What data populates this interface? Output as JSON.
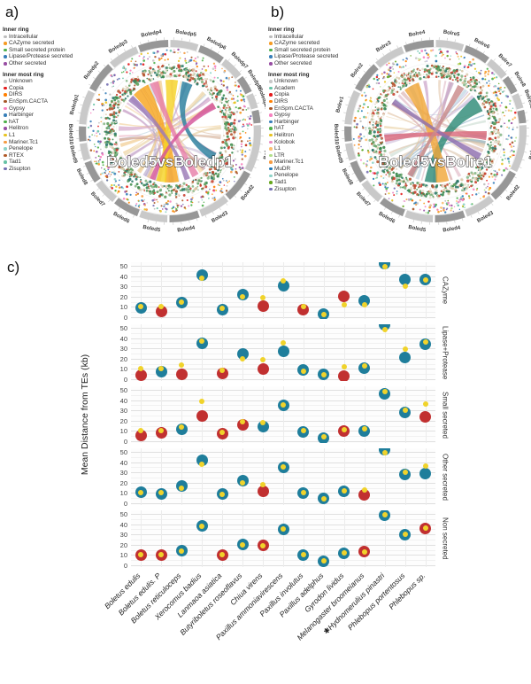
{
  "figure": {
    "panel_a": {
      "label": "a)",
      "legend": {
        "inner_ring_title": "Inner ring",
        "inner_ring": [
          {
            "label": "Intracellular",
            "color": "#bdbdbd"
          },
          {
            "label": "CAZyme secreted",
            "color": "#f59b23"
          },
          {
            "label": "Small secreted protein",
            "color": "#4daf4a"
          },
          {
            "label": "Lipase/Protease secreted",
            "color": "#377eb8"
          },
          {
            "label": "Other secreted",
            "color": "#984ea3"
          }
        ],
        "inner_most_ring_title": "Inner most ring",
        "inner_most_ring": [
          {
            "label": "Unknown",
            "color": "#c8c8c8"
          },
          {
            "label": "Copia",
            "color": "#e41a1c"
          },
          {
            "label": "DIRS",
            "color": "#ff7f00"
          },
          {
            "label": "EnSpm.CACTA",
            "color": "#a65628"
          },
          {
            "label": "Gypsy",
            "color": "#f781bf"
          },
          {
            "label": "Harbinger",
            "color": "#377eb8"
          },
          {
            "label": "hAT",
            "color": "#4daf4a"
          },
          {
            "label": "Helitron",
            "color": "#984ea3"
          },
          {
            "label": "L1",
            "color": "#e8c320"
          },
          {
            "label": "Mariner.Tc1",
            "color": "#f59b42"
          },
          {
            "label": "Penelope",
            "color": "#8dd3c7"
          },
          {
            "label": "RTEX",
            "color": "#b15928"
          },
          {
            "label": "Tad1",
            "color": "#66c2a5"
          },
          {
            "label": "Zisupton",
            "color": "#7570b3"
          }
        ]
      }
    },
    "panel_b": {
      "label": "b)",
      "legend": {
        "inner_ring_title": "Inner ring",
        "inner_ring": [
          {
            "label": "Intracellular",
            "color": "#bdbdbd"
          },
          {
            "label": "CAZyme secreted",
            "color": "#f59b23"
          },
          {
            "label": "Small secreted protein",
            "color": "#4daf4a"
          },
          {
            "label": "Lipase/Protease secreted",
            "color": "#377eb8"
          },
          {
            "label": "Other secreted",
            "color": "#984ea3"
          }
        ],
        "inner_most_ring_title": "Inner most ring",
        "inner_most_ring": [
          {
            "label": "Unknown",
            "color": "#c8c8c8"
          },
          {
            "label": "Academ",
            "color": "#66c2a5"
          },
          {
            "label": "Copia",
            "color": "#e41a1c"
          },
          {
            "label": "DIRS",
            "color": "#ff7f00"
          },
          {
            "label": "EnSpm.CACTA",
            "color": "#a65628"
          },
          {
            "label": "Gypsy",
            "color": "#f781bf"
          },
          {
            "label": "Harbinger",
            "color": "#377eb8"
          },
          {
            "label": "hAT",
            "color": "#4daf4a"
          },
          {
            "label": "Helitron",
            "color": "#e8c320"
          },
          {
            "label": "Kolobok",
            "color": "#e78ac3"
          },
          {
            "label": "L1",
            "color": "#fdbf6f"
          },
          {
            "label": "LTR",
            "color": "#b2df8a"
          },
          {
            "label": "Mariner.Tc1",
            "color": "#f59b42"
          },
          {
            "label": "MuDR",
            "color": "#1f78b4"
          },
          {
            "label": "Penelope",
            "color": "#8dd3c7"
          },
          {
            "label": "Tad1",
            "color": "#66a61e"
          },
          {
            "label": "Zisupton",
            "color": "#7570b3"
          }
        ]
      }
    },
    "panel_c": {
      "label": "c)"
    }
  },
  "chart_data": [
    {
      "type": "chord",
      "title": "Boled5vsBoledp1",
      "seed": 42,
      "chromosomes": [
        {
          "name": "Boledp2",
          "size": 7
        },
        {
          "name": "Boledp3",
          "size": 7
        },
        {
          "name": "Boledp4",
          "size": 7
        },
        {
          "name": "Boledp5",
          "size": 6.5
        },
        {
          "name": "Boledp6",
          "size": 6
        },
        {
          "name": "Boledp7",
          "size": 5
        },
        {
          "name": "Boledp8",
          "size": 4
        },
        {
          "name": "Boledp9",
          "size": 3.5
        },
        {
          "name": "Boledp10",
          "size": 3
        },
        {
          "name": "Boled1",
          "size": 11
        },
        {
          "name": "Boled2",
          "size": 7.5
        },
        {
          "name": "Boled3",
          "size": 7
        },
        {
          "name": "Boled4",
          "size": 7
        },
        {
          "name": "Boled5",
          "size": 6.5
        },
        {
          "name": "Boled6",
          "size": 6
        },
        {
          "name": "Boled7",
          "size": 5.5
        },
        {
          "name": "Boled8",
          "size": 5
        },
        {
          "name": "Boled9",
          "size": 4
        },
        {
          "name": "Boled10",
          "size": 3.5
        },
        {
          "name": "Boledp1",
          "size": 8
        }
      ],
      "ring_shades": [
        "#979797",
        "#c9c9c9"
      ],
      "mosaic_colors": [
        "#3a8a4d",
        "#c94030",
        "#60a060",
        "#d9c9a8",
        "#b5542f",
        "#88b888",
        "#e8e0d0",
        "#2d7a6a"
      ],
      "major_chords": [
        {
          "a": -35,
          "b": 178,
          "w": 10,
          "color": "#f6a51f"
        },
        {
          "a": 2,
          "b": 190,
          "w": 7,
          "color": "#f5d327"
        },
        {
          "a": 20,
          "b": 120,
          "w": 6,
          "color": "#2a7f9e"
        },
        {
          "a": -18,
          "b": 150,
          "w": 5,
          "color": "#e77fa8"
        },
        {
          "a": 60,
          "b": 200,
          "w": 4,
          "color": "#d4549a"
        },
        {
          "a": -50,
          "b": 160,
          "w": 4,
          "color": "#9b7bb8"
        }
      ],
      "chord_palette": [
        "#e9a0b4",
        "#d4a5c9",
        "#c9b8d9",
        "#f0c888",
        "#a8c4d4",
        "#d9b8a0",
        "#c99a9a",
        "#e8d0a0",
        "#b8a8cc",
        "#f0b8c8"
      ]
    },
    {
      "type": "chord",
      "title": "Boled5vsBolre1",
      "seed": 77,
      "chromosomes": [
        {
          "name": "Bolre2",
          "size": 7
        },
        {
          "name": "Bolre3",
          "size": 7
        },
        {
          "name": "Bolre4",
          "size": 7
        },
        {
          "name": "Bolre5",
          "size": 6.5
        },
        {
          "name": "Bolre6",
          "size": 6
        },
        {
          "name": "Bolre7",
          "size": 5
        },
        {
          "name": "Bolre8",
          "size": 4
        },
        {
          "name": "Bolre9",
          "size": 3.5
        },
        {
          "name": "Bolre10",
          "size": 3
        },
        {
          "name": "Boled1",
          "size": 11
        },
        {
          "name": "Boled2",
          "size": 7.5
        },
        {
          "name": "Boled3",
          "size": 7
        },
        {
          "name": "Boled4",
          "size": 7
        },
        {
          "name": "Boled5",
          "size": 6.5
        },
        {
          "name": "Boled6",
          "size": 6
        },
        {
          "name": "Boled7",
          "size": 5.5
        },
        {
          "name": "Boled8",
          "size": 5
        },
        {
          "name": "Boled9",
          "size": 4
        },
        {
          "name": "Boled10",
          "size": 3.5
        },
        {
          "name": "Bolre1",
          "size": 8
        }
      ],
      "ring_shades": [
        "#979797",
        "#c9c9c9"
      ],
      "mosaic_colors": [
        "#3a8a4d",
        "#c94030",
        "#60a060",
        "#d9c9a8",
        "#b5542f",
        "#88b888",
        "#e8e0d0",
        "#2d7a6a"
      ],
      "major_chords": [
        {
          "a": 58,
          "b": 185,
          "w": 9,
          "color": "#2e8b78"
        },
        {
          "a": -28,
          "b": 172,
          "w": 9,
          "color": "#f0a73a"
        },
        {
          "a": 95,
          "b": 262,
          "w": 5,
          "color": "#d96a7c"
        },
        {
          "a": 120,
          "b": 305,
          "w": 4,
          "color": "#8f6fae"
        },
        {
          "a": 30,
          "b": 210,
          "w": 4,
          "color": "#c98a8a"
        }
      ],
      "chord_palette": [
        "#d9c2a8",
        "#c9a0c7",
        "#8fb3c9",
        "#e0b7c4",
        "#b8d0c2",
        "#e8cfa0",
        "#a9c7d9",
        "#d4a5a5",
        "#e0c0a0",
        "#c4b0d4"
      ]
    },
    {
      "type": "scatter",
      "ylabel": "Mean Distance from TEs (kb)",
      "ylim": [
        0,
        55
      ],
      "yticks": [
        0,
        10,
        20,
        30,
        40,
        50
      ],
      "grid": "on",
      "facets": [
        "CAZyme",
        "Lipase+Protease",
        "Small secreted",
        "Other secreted",
        "Non secreted"
      ],
      "species": [
        "Boletus edulis",
        "Boletus edulis. P",
        "Boletus reticuloceps",
        "Xerocomus badius",
        "Lanmaoa asiatica",
        "Butyriboletus roseoflavus",
        "Chiua virens",
        "Paxillus ammoniavirescens",
        "Paxillus involutus",
        "Paxillus adelphus",
        "Gyrodon lividus",
        "Melanogaster broomeianus",
        "✱Hydnomerulius pinastri",
        "Phlebopus portentosus",
        "Phlebopus sp."
      ],
      "point_colors": {
        "t": "#1f7e9b",
        "r": "#c13030",
        "yellow": "#f0d32b"
      },
      "points_format": [
        "circle_kb",
        "circle_color",
        "yellow_dot_kb"
      ],
      "series": [
        {
          "facet": "CAZyme",
          "points": [
            [
              9,
              "t",
              10
            ],
            [
              6,
              "r",
              10
            ],
            [
              14,
              "t",
              15
            ],
            [
              41,
              "t",
              38
            ],
            [
              7,
              "t",
              9
            ],
            [
              22,
              "t",
              20
            ],
            [
              11,
              "r",
              19
            ],
            [
              31,
              "t",
              35
            ],
            [
              7,
              "r",
              10
            ],
            [
              3,
              "t",
              3
            ],
            [
              20,
              "r",
              12
            ],
            [
              16,
              "t",
              12
            ],
            [
              52,
              "t",
              49
            ],
            [
              37,
              "t",
              30
            ],
            [
              37,
              "t",
              36
            ]
          ]
        },
        {
          "facet": "Lipase+Protease",
          "points": [
            [
              4,
              "r",
              10
            ],
            [
              7,
              "t",
              10
            ],
            [
              5,
              "r",
              14
            ],
            [
              35,
              "t",
              37
            ],
            [
              6,
              "r",
              9
            ],
            [
              25,
              "t",
              20
            ],
            [
              10,
              "r",
              19
            ],
            [
              27,
              "t",
              35
            ],
            [
              9,
              "t",
              8
            ],
            [
              5,
              "t",
              4
            ],
            [
              3,
              "r",
              12
            ],
            [
              11,
              "t",
              13
            ],
            [
              53,
              "t",
              48
            ],
            [
              21,
              "t",
              29
            ],
            [
              34,
              "t",
              36
            ]
          ]
        },
        {
          "facet": "Small secreted",
          "points": [
            [
              6,
              "r",
              10
            ],
            [
              8,
              "r",
              10
            ],
            [
              12,
              "t",
              14
            ],
            [
              25,
              "r",
              39
            ],
            [
              7,
              "r",
              9
            ],
            [
              16,
              "r",
              19
            ],
            [
              14,
              "t",
              18
            ],
            [
              35,
              "t",
              35
            ],
            [
              9,
              "t",
              10
            ],
            [
              3,
              "t",
              4
            ],
            [
              10,
              "r",
              11
            ],
            [
              10,
              "t",
              12
            ],
            [
              46,
              "t",
              48
            ],
            [
              28,
              "t",
              30
            ],
            [
              24,
              "r",
              36
            ]
          ]
        },
        {
          "facet": "Other secreted",
          "points": [
            [
              11,
              "t",
              10
            ],
            [
              9,
              "t",
              10
            ],
            [
              17,
              "t",
              15
            ],
            [
              42,
              "t",
              38
            ],
            [
              9,
              "t",
              9
            ],
            [
              22,
              "t",
              20
            ],
            [
              12,
              "r",
              18
            ],
            [
              35,
              "t",
              35
            ],
            [
              10,
              "t",
              10
            ],
            [
              5,
              "t",
              4
            ],
            [
              12,
              "t",
              12
            ],
            [
              8,
              "r",
              13
            ],
            [
              52,
              "t",
              49
            ],
            [
              28,
              "t",
              30
            ],
            [
              29,
              "t",
              36
            ]
          ]
        },
        {
          "facet": "Non secreted",
          "points": [
            [
              10,
              "r",
              10
            ],
            [
              10,
              "r",
              10
            ],
            [
              14,
              "t",
              14
            ],
            [
              38,
              "t",
              38
            ],
            [
              10,
              "r",
              10
            ],
            [
              20,
              "t",
              20
            ],
            [
              19,
              "r",
              19
            ],
            [
              35,
              "t",
              35
            ],
            [
              10,
              "t",
              10
            ],
            [
              4,
              "t",
              4
            ],
            [
              12,
              "t",
              12
            ],
            [
              13,
              "r",
              13
            ],
            [
              49,
              "t",
              49
            ],
            [
              30,
              "t",
              30
            ],
            [
              36,
              "r",
              36
            ]
          ]
        }
      ]
    }
  ]
}
